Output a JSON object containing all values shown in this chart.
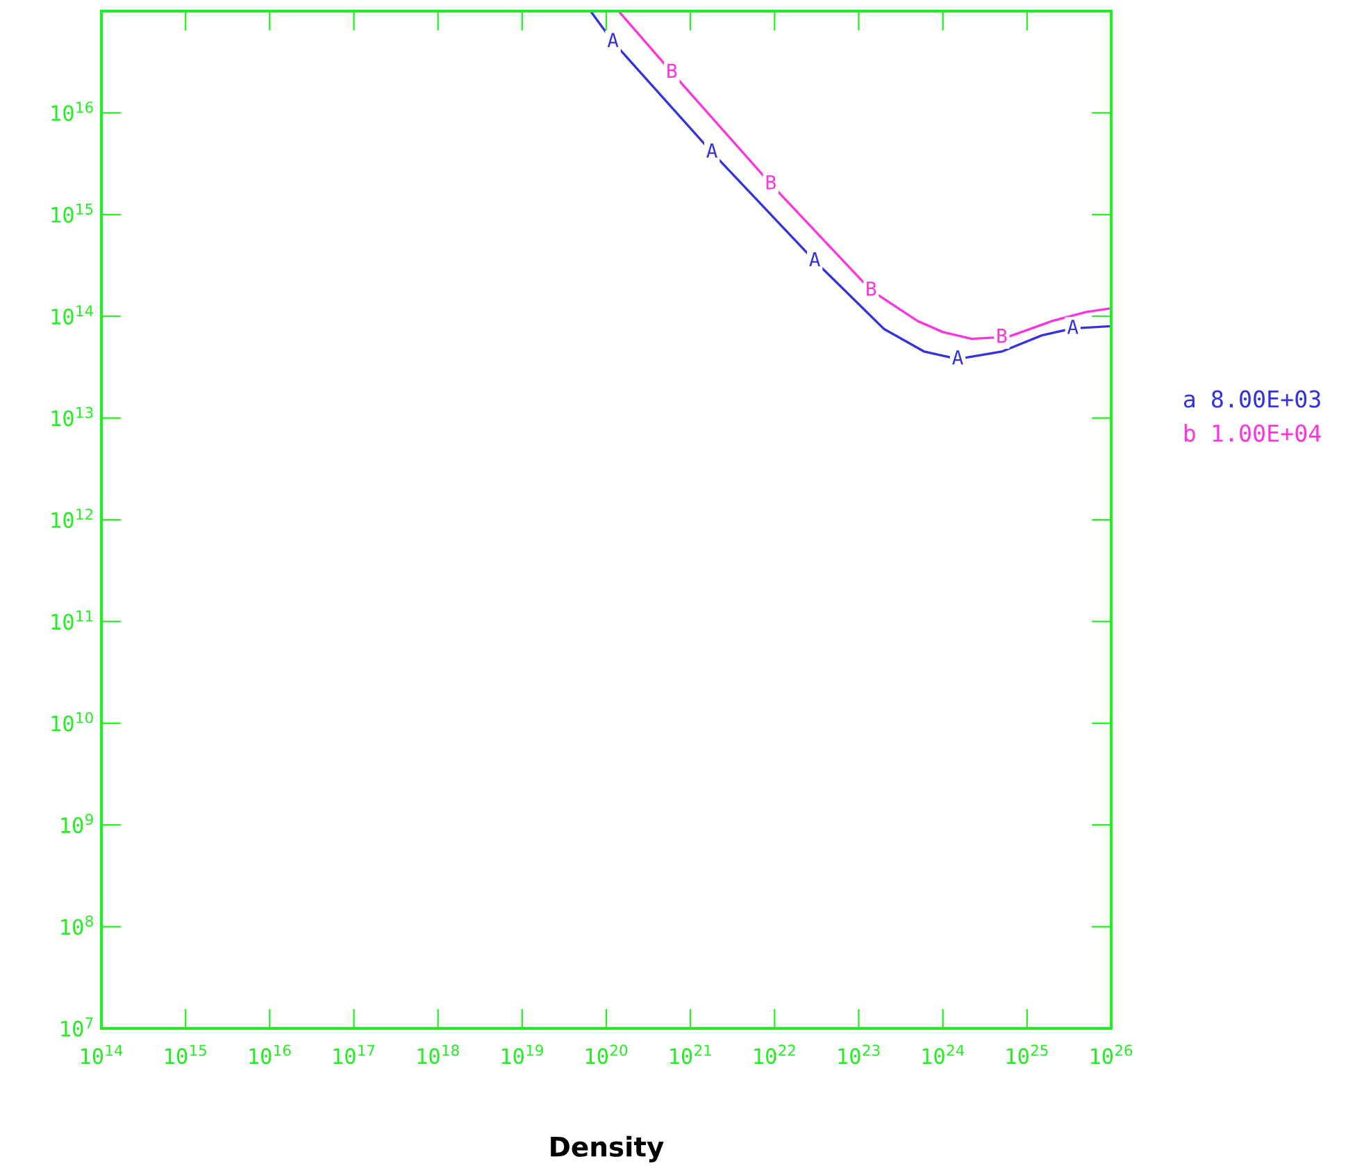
{
  "chart_data": {
    "type": "line",
    "xlabel": "Density",
    "log": "xy",
    "xlim": [
      100000000000000.0,
      1e+26
    ],
    "ylim": [
      10000000.0,
      1e+17
    ],
    "xticks": [
      {
        "value": 100000000000000.0,
        "label": "10$^{14}$"
      },
      {
        "value": 1000000000000000.0,
        "label": "10$^{15}$"
      },
      {
        "value": 1e+16,
        "label": "10$^{16}$"
      },
      {
        "value": 1e+17,
        "label": "10$^{17}$"
      },
      {
        "value": 1e+18,
        "label": "10$^{18}$"
      },
      {
        "value": 1e+19,
        "label": "10$^{19}$"
      },
      {
        "value": 1e+20,
        "label": "10$^{20}$"
      },
      {
        "value": 1e+21,
        "label": "10$^{21}$"
      },
      {
        "value": 1e+22,
        "label": "10$^{22}$"
      },
      {
        "value": 1e+23,
        "label": "10$^{23}$"
      },
      {
        "value": 1e+24,
        "label": "10$^{24}$"
      },
      {
        "value": 1e+25,
        "label": "10$^{25}$"
      },
      {
        "value": 1e+26,
        "label": "10$^{26}$"
      }
    ],
    "yticks": [
      {
        "value": 10000000.0,
        "label": "10$^{7}$"
      },
      {
        "value": 100000000.0,
        "label": "10$^{8}$"
      },
      {
        "value": 1000000000.0,
        "label": "10$^{9}$"
      },
      {
        "value": 10000000000.0,
        "label": "10$^{10}$"
      },
      {
        "value": 100000000000.0,
        "label": "10$^{11}$"
      },
      {
        "value": 1000000000000.0,
        "label": "10$^{12}$"
      },
      {
        "value": 10000000000000.0,
        "label": "10$^{13}$"
      },
      {
        "value": 100000000000000.0,
        "label": "10$^{14}$"
      },
      {
        "value": 1000000000000000.0,
        "label": "10$^{15}$"
      },
      {
        "value": 1e+16,
        "label": "10$^{16}$"
      },
      {
        "value": 1e+17,
        "label": null
      }
    ],
    "legend": "right",
    "grid": false,
    "marker": "none",
    "line_style": "solid",
    "series": [
      {
        "name": "a 8.00E+03",
        "color": "#3333dd",
        "x": [
          6.5e+19,
          1.2e+20,
          1.8e+21,
          3e+22,
          2e+23,
          6e+23,
          1.5e+24,
          5e+24,
          1.5e+25,
          3.5e+25,
          1e+26
        ],
        "values": [
          1e+17,
          5e+16,
          4100000000000000.0,
          350000000000000.0,
          75000000000000.0,
          45000000000000.0,
          38000000000000.0,
          45000000000000.0,
          65000000000000.0,
          76000000000000.0,
          80000000000000.0
        ]
      },
      {
        "name": "b 1.00E+04",
        "color": "#ff33dd",
        "x": [
          1.4e+20,
          6e+20,
          9e+21,
          1.4e+23,
          5e+23,
          1e+24,
          2.2e+24,
          6e+24,
          2e+25,
          5e+25,
          1e+26
        ],
        "values": [
          1e+17,
          2.5e+16,
          2000000000000000.0,
          180000000000000.0,
          90000000000000.0,
          70000000000000.0,
          60000000000000.0,
          63000000000000.0,
          90000000000000.0,
          110000000000000.0,
          120000000000000.0
        ]
      }
    ],
    "annotations": [
      {
        "text": "A",
        "x": 1.2e+20,
        "y": 5e+16
      },
      {
        "text": "A",
        "x": 1.8e+21,
        "y": 4100000000000000.0
      },
      {
        "text": "A",
        "x": 3e+22,
        "y": 350000000000000.0
      },
      {
        "text": "A",
        "x": 1.5e+24,
        "y": 38000000000000.0
      },
      {
        "text": "A",
        "x": 3.5e+25,
        "y": 76000000000000.0
      },
      {
        "text": "B",
        "x": 6e+20,
        "y": 2.5e+16
      },
      {
        "text": "B",
        "x": 9e+21,
        "y": 2000000000000000.0
      },
      {
        "text": "B",
        "x": 1.4e+23,
        "y": 180000000000000.0
      },
      {
        "text": "B",
        "x": 5e+24,
        "y": 62000000000000.0
      }
    ]
  }
}
